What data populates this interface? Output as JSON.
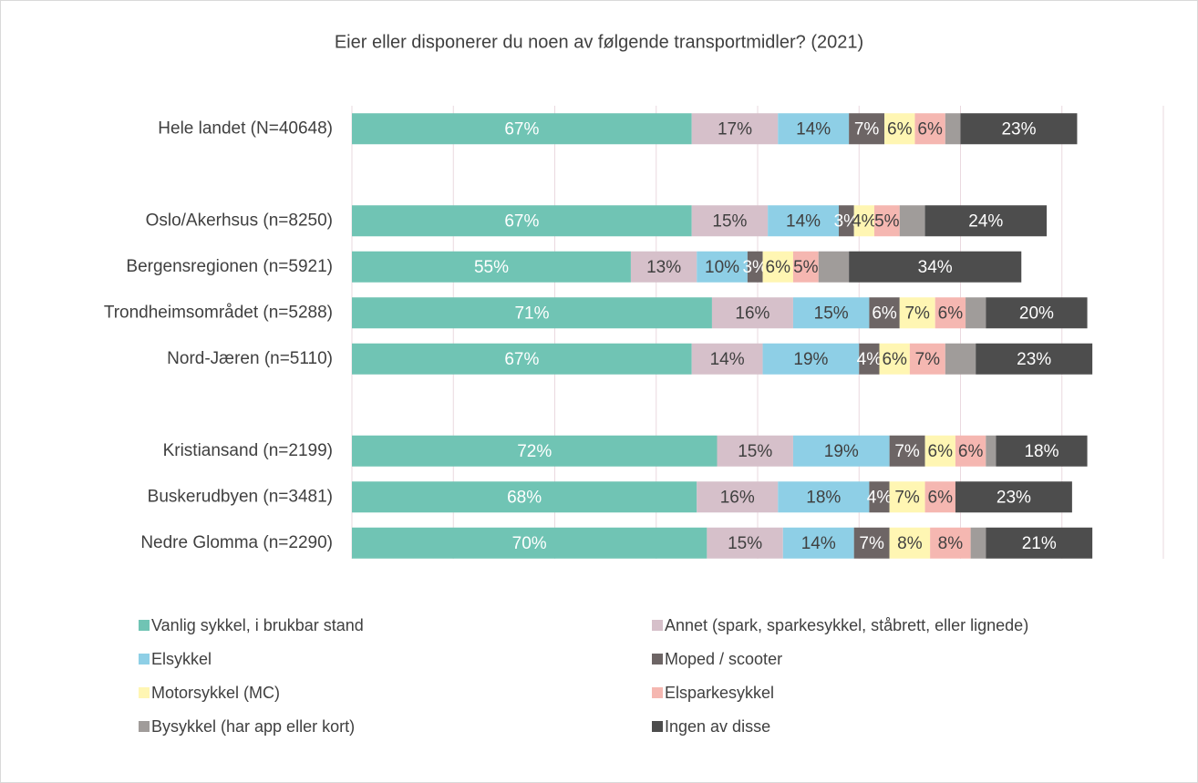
{
  "chart_data": {
    "type": "stacked-bar-horizontal",
    "title": "Eier eller disponerer du noen av følgende transportmidler? (2021)",
    "categories": [
      "Hele landet (N=40648)",
      null,
      "Oslo/Akerhsus (n=8250)",
      "Bergensregionen (n=5921)",
      "Trondheimsområdet (n=5288)",
      "Nord-Jæren (n=5110)",
      null,
      "Kristiansand (n=2199)",
      "Buskerudbyen (n=3481)",
      "Nedre Glomma (n=2290)"
    ],
    "xlim": [
      0,
      160
    ],
    "xticks": [
      0,
      20,
      40,
      60,
      80,
      100,
      120,
      140,
      160
    ],
    "grid": true,
    "legend": "bottom",
    "series": [
      {
        "name": "Vanlig sykkel, i brukbar stand",
        "color": "#70c4b4",
        "values": [
          67,
          null,
          67,
          55,
          71,
          67,
          null,
          72,
          68,
          70
        ],
        "value_labels": [
          "67%",
          null,
          "67%",
          "55%",
          "71%",
          "67%",
          null,
          "72%",
          "68%",
          "70%"
        ]
      },
      {
        "name": "Annet (spark, sparkesykkel, ståbrett, eller lignede)",
        "color": "#d6c0ca",
        "values": [
          17,
          null,
          15,
          13,
          16,
          14,
          null,
          15,
          16,
          15
        ],
        "value_labels": [
          "17%",
          null,
          "15%",
          "13%",
          "16%",
          "14%",
          null,
          "15%",
          "16%",
          "15%"
        ]
      },
      {
        "name": "Elsykkel",
        "color": "#8ecfe6",
        "values": [
          14,
          null,
          14,
          10,
          15,
          19,
          null,
          19,
          18,
          14
        ],
        "value_labels": [
          "14%",
          null,
          "14%",
          "10%",
          "15%",
          "19%",
          null,
          "19%",
          "18%",
          "14%"
        ]
      },
      {
        "name": "Moped / scooter",
        "color": "#6d6565",
        "values": [
          7,
          null,
          3,
          3,
          6,
          4,
          null,
          7,
          4,
          7
        ],
        "value_labels": [
          "7%",
          null,
          "3%",
          "3%",
          "6%",
          "4%",
          null,
          "7%",
          "4%",
          "7%"
        ]
      },
      {
        "name": "Motorsykkel (MC)",
        "color": "#fff6b3",
        "values": [
          6,
          null,
          4,
          6,
          7,
          6,
          null,
          6,
          7,
          8
        ],
        "value_labels": [
          "6%",
          null,
          "4%",
          "6%",
          "7%",
          "6%",
          null,
          "6%",
          "7%",
          "8%"
        ]
      },
      {
        "name": "Elsparkesykkel",
        "color": "#f5b7b1",
        "values": [
          6,
          null,
          5,
          5,
          6,
          7,
          null,
          6,
          6,
          8
        ],
        "value_labels": [
          "6%",
          null,
          "5%",
          "5%",
          "6%",
          "7%",
          null,
          "6%",
          "6%",
          "8%"
        ]
      },
      {
        "name": "Bysykkel (har app eller kort)",
        "color": "#a09c9a",
        "values": [
          3,
          null,
          5,
          6,
          4,
          6,
          null,
          2,
          0,
          3
        ]
      },
      {
        "name": "Ingen av disse",
        "color": "#4d4d4d",
        "values": [
          23,
          null,
          24,
          34,
          20,
          23,
          null,
          18,
          23,
          21
        ],
        "value_labels": [
          "23%",
          null,
          "24%",
          "34%",
          "20%",
          "23%",
          null,
          "18%",
          "23%",
          "21%"
        ]
      }
    ]
  }
}
